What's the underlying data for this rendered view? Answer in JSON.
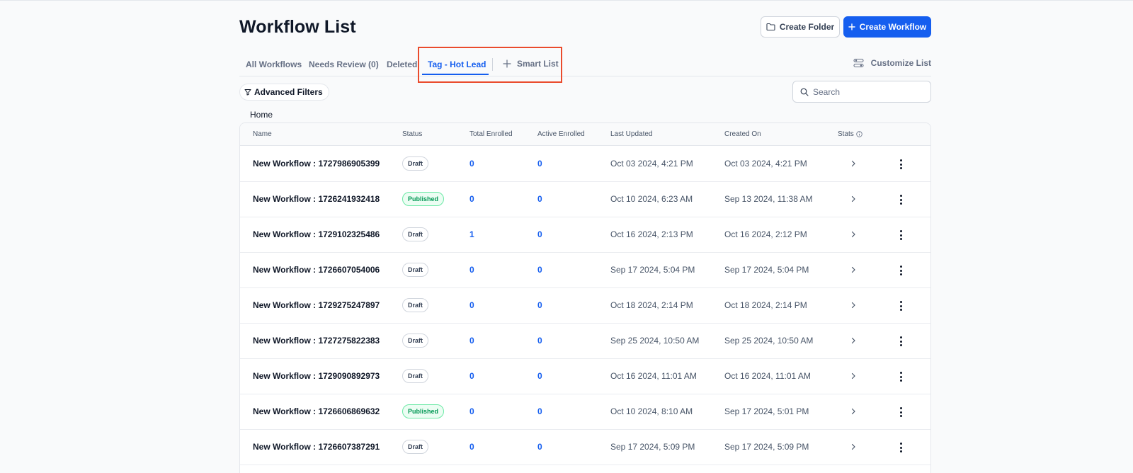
{
  "header": {
    "title": "Workflow List",
    "create_folder_label": "Create Folder",
    "create_workflow_label": "Create Workflow"
  },
  "tabs": {
    "all": "All Workflows",
    "needs_review": "Needs Review (0)",
    "deleted": "Deleted",
    "hot_lead": "Tag - Hot Lead",
    "smart_list": "Smart List",
    "customize": "Customize List"
  },
  "filters": {
    "advanced_label": "Advanced Filters",
    "search_placeholder": "Search"
  },
  "breadcrumb": "Home",
  "table": {
    "columns": {
      "name": "Name",
      "status": "Status",
      "total": "Total Enrolled",
      "active": "Active Enrolled",
      "updated": "Last Updated",
      "created": "Created On",
      "stats": "Stats"
    },
    "rows": [
      {
        "name": "New Workflow : 1727986905399",
        "status": "Draft",
        "status_kind": "draft",
        "total": "0",
        "active": "0",
        "updated": "Oct 03 2024, 4:21 PM",
        "created": "Oct 03 2024, 4:21 PM"
      },
      {
        "name": "New Workflow : 1726241932418",
        "status": "Published",
        "status_kind": "published",
        "total": "0",
        "active": "0",
        "updated": "Oct 10 2024, 6:23 AM",
        "created": "Sep 13 2024, 11:38 AM"
      },
      {
        "name": "New Workflow : 1729102325486",
        "status": "Draft",
        "status_kind": "draft",
        "total": "1",
        "active": "0",
        "updated": "Oct 16 2024, 2:13 PM",
        "created": "Oct 16 2024, 2:12 PM"
      },
      {
        "name": "New Workflow : 1726607054006",
        "status": "Draft",
        "status_kind": "draft",
        "total": "0",
        "active": "0",
        "updated": "Sep 17 2024, 5:04 PM",
        "created": "Sep 17 2024, 5:04 PM"
      },
      {
        "name": "New Workflow : 1729275247897",
        "status": "Draft",
        "status_kind": "draft",
        "total": "0",
        "active": "0",
        "updated": "Oct 18 2024, 2:14 PM",
        "created": "Oct 18 2024, 2:14 PM"
      },
      {
        "name": "New Workflow : 1727275822383",
        "status": "Draft",
        "status_kind": "draft",
        "total": "0",
        "active": "0",
        "updated": "Sep 25 2024, 10:50 AM",
        "created": "Sep 25 2024, 10:50 AM"
      },
      {
        "name": "New Workflow : 1729090892973",
        "status": "Draft",
        "status_kind": "draft",
        "total": "0",
        "active": "0",
        "updated": "Oct 16 2024, 11:01 AM",
        "created": "Oct 16 2024, 11:01 AM"
      },
      {
        "name": "New Workflow : 1726606869632",
        "status": "Published",
        "status_kind": "published",
        "total": "0",
        "active": "0",
        "updated": "Oct 10 2024, 8:10 AM",
        "created": "Sep 17 2024, 5:01 PM"
      },
      {
        "name": "New Workflow : 1726607387291",
        "status": "Draft",
        "status_kind": "draft",
        "total": "0",
        "active": "0",
        "updated": "Sep 17 2024, 5:09 PM",
        "created": "Sep 17 2024, 5:09 PM"
      }
    ]
  },
  "colors": {
    "accent": "#155eef",
    "highlight": "#ea4b2c",
    "published": "#039855"
  }
}
